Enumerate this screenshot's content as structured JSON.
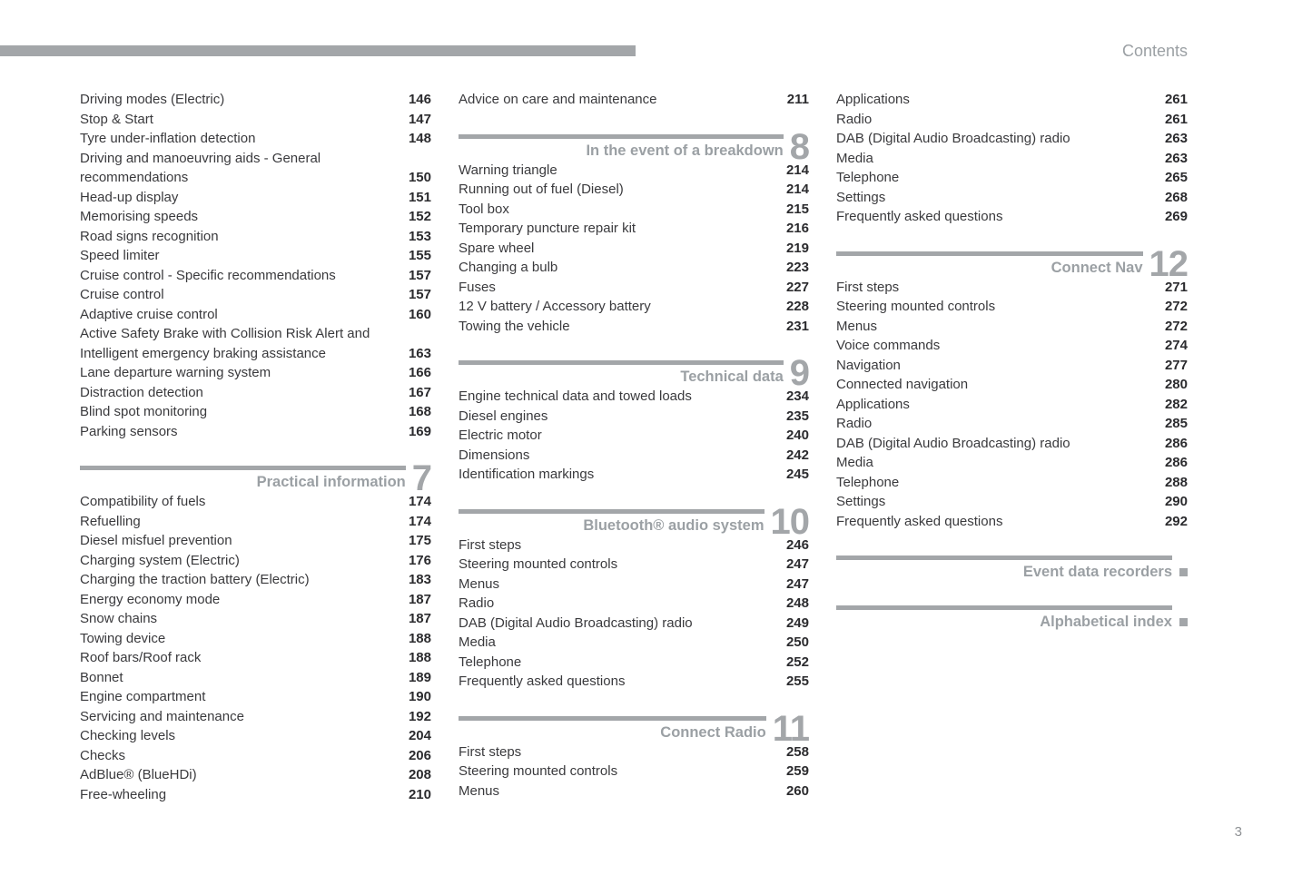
{
  "page": {
    "contents_label": "Contents",
    "page_number": "3"
  },
  "colors": {
    "accent_gray": "#a3a6a9",
    "header_text_gray": "#9ba0a4",
    "entry_text": "#3a3a3d",
    "page_number_text": "#2b2b2e"
  },
  "columns": [
    {
      "sections": [
        {
          "items": [
            {
              "label": "Driving modes (Electric)",
              "page": "146"
            },
            {
              "label": "Stop & Start",
              "page": "147"
            },
            {
              "label": "Tyre under-inflation detection",
              "page": "148"
            },
            {
              "label": "Driving and manoeuvring aids - General\nrecommendations",
              "page": "150"
            },
            {
              "label": "Head-up display",
              "page": "151"
            },
            {
              "label": "Memorising speeds",
              "page": "152"
            },
            {
              "label": "Road signs recognition",
              "page": "153"
            },
            {
              "label": "Speed limiter",
              "page": "155"
            },
            {
              "label": "Cruise control - Specific recommendations",
              "page": "157"
            },
            {
              "label": "Cruise control",
              "page": "157"
            },
            {
              "label": "Adaptive cruise control",
              "page": "160"
            },
            {
              "label": "Active Safety Brake with Collision Risk Alert and\nIntelligent emergency braking assistance",
              "page": "163"
            },
            {
              "label": "Lane departure warning system",
              "page": "166"
            },
            {
              "label": "Distraction detection",
              "page": "167"
            },
            {
              "label": "Blind spot monitoring",
              "page": "168"
            },
            {
              "label": "Parking sensors",
              "page": "169"
            }
          ]
        },
        {
          "title": "Practical information",
          "number": "7",
          "items": [
            {
              "label": "Compatibility of fuels",
              "page": "174"
            },
            {
              "label": "Refuelling",
              "page": "174"
            },
            {
              "label": "Diesel misfuel prevention",
              "page": "175"
            },
            {
              "label": "Charging system (Electric)",
              "page": "176"
            },
            {
              "label": "Charging the traction battery (Electric)",
              "page": "183"
            },
            {
              "label": "Energy economy mode",
              "page": "187"
            },
            {
              "label": "Snow chains",
              "page": "187"
            },
            {
              "label": "Towing device",
              "page": "188"
            },
            {
              "label": "Roof bars/Roof rack",
              "page": "188"
            },
            {
              "label": "Bonnet",
              "page": "189"
            },
            {
              "label": "Engine compartment",
              "page": "190"
            },
            {
              "label": "Servicing and maintenance",
              "page": "192"
            },
            {
              "label": "Checking levels",
              "page": "204"
            },
            {
              "label": "Checks",
              "page": "206"
            },
            {
              "label": "AdBlue® (BlueHDi)",
              "page": "208"
            },
            {
              "label": "Free-wheeling",
              "page": "210"
            }
          ]
        }
      ]
    },
    {
      "sections": [
        {
          "items": [
            {
              "label": "Advice on care and maintenance",
              "page": "211"
            }
          ]
        },
        {
          "title": "In the event of a breakdown",
          "number": "8",
          "items": [
            {
              "label": "Warning triangle",
              "page": "214"
            },
            {
              "label": "Running out of fuel (Diesel)",
              "page": "214"
            },
            {
              "label": "Tool box",
              "page": "215"
            },
            {
              "label": "Temporary puncture repair kit",
              "page": "216"
            },
            {
              "label": "Spare wheel",
              "page": "219"
            },
            {
              "label": "Changing a bulb",
              "page": "223"
            },
            {
              "label": "Fuses",
              "page": "227"
            },
            {
              "label": "12 V battery / Accessory battery",
              "page": "228"
            },
            {
              "label": "Towing the vehicle",
              "page": "231"
            }
          ]
        },
        {
          "title": "Technical data",
          "number": "9",
          "items": [
            {
              "label": "Engine technical data and towed loads",
              "page": "234"
            },
            {
              "label": "Diesel engines",
              "page": "235"
            },
            {
              "label": "Electric motor",
              "page": "240"
            },
            {
              "label": "Dimensions",
              "page": "242"
            },
            {
              "label": "Identification markings",
              "page": "245"
            }
          ]
        },
        {
          "title": "Bluetooth® audio system",
          "number": "10",
          "items": [
            {
              "label": "First steps",
              "page": "246"
            },
            {
              "label": "Steering mounted controls",
              "page": "247"
            },
            {
              "label": "Menus",
              "page": "247"
            },
            {
              "label": "Radio",
              "page": "248"
            },
            {
              "label": "DAB (Digital Audio Broadcasting) radio",
              "page": "249"
            },
            {
              "label": "Media",
              "page": "250"
            },
            {
              "label": "Telephone",
              "page": "252"
            },
            {
              "label": "Frequently asked questions",
              "page": "255"
            }
          ]
        },
        {
          "title": "Connect Radio",
          "number": "11",
          "items": [
            {
              "label": "First steps",
              "page": "258"
            },
            {
              "label": "Steering mounted controls",
              "page": "259"
            },
            {
              "label": "Menus",
              "page": "260"
            }
          ]
        }
      ]
    },
    {
      "sections": [
        {
          "items": [
            {
              "label": "Applications",
              "page": "261"
            },
            {
              "label": "Radio",
              "page": "261"
            },
            {
              "label": "DAB (Digital Audio Broadcasting) radio",
              "page": "263"
            },
            {
              "label": "Media",
              "page": "263"
            },
            {
              "label": "Telephone",
              "page": "265"
            },
            {
              "label": "Settings",
              "page": "268"
            },
            {
              "label": "Frequently asked questions",
              "page": "269"
            }
          ]
        },
        {
          "title": "Connect Nav",
          "number": "12",
          "items": [
            {
              "label": "First steps",
              "page": "271"
            },
            {
              "label": "Steering mounted controls",
              "page": "272"
            },
            {
              "label": "Menus",
              "page": "272"
            },
            {
              "label": "Voice commands",
              "page": "274"
            },
            {
              "label": "Navigation",
              "page": "277"
            },
            {
              "label": "Connected navigation",
              "page": "280"
            },
            {
              "label": "Applications",
              "page": "282"
            },
            {
              "label": "Radio",
              "page": "285"
            },
            {
              "label": "DAB (Digital Audio Broadcasting) radio",
              "page": "286"
            },
            {
              "label": "Media",
              "page": "286"
            },
            {
              "label": "Telephone",
              "page": "288"
            },
            {
              "label": "Settings",
              "page": "290"
            },
            {
              "label": "Frequently asked questions",
              "page": "292"
            }
          ]
        },
        {
          "title": "Event data recorders",
          "marker": true,
          "items": []
        },
        {
          "title": "Alphabetical index",
          "marker": true,
          "items": []
        }
      ]
    }
  ]
}
